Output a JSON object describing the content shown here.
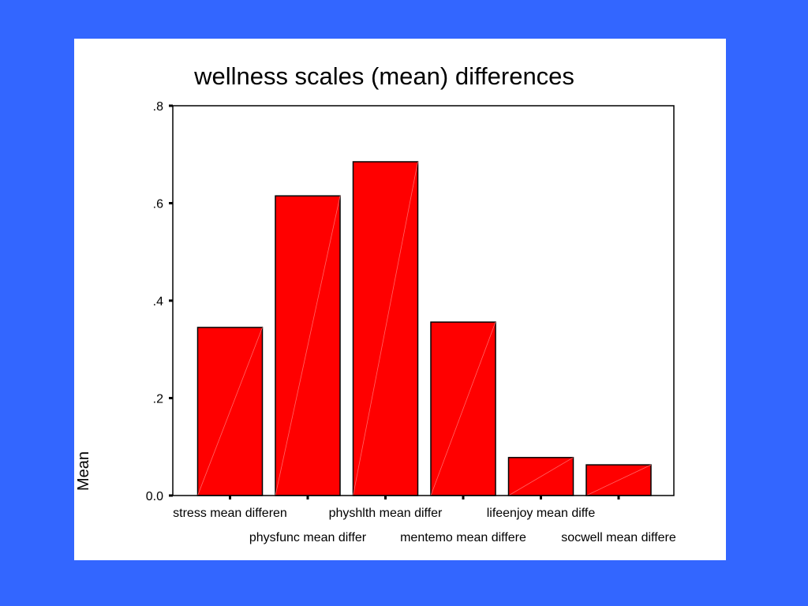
{
  "background_color": "#3366ff",
  "chart_data": {
    "type": "bar",
    "title": "wellness scales (mean) differences",
    "ylabel": "Mean",
    "xlabel": "",
    "ylim": [
      0,
      0.8
    ],
    "yticks": [
      {
        "value": 0.0,
        "label": "0.0"
      },
      {
        "value": 0.2,
        "label": ".2"
      },
      {
        "value": 0.4,
        "label": ".4"
      },
      {
        "value": 0.6,
        "label": ".6"
      },
      {
        "value": 0.8,
        "label": ".8"
      }
    ],
    "categories": [
      "stress mean differen",
      "physfunc mean differ",
      "physhlth mean differ",
      "mentemo mean differe",
      "lifeenjoy mean diffe",
      "socwell mean differe"
    ],
    "values": [
      0.345,
      0.615,
      0.685,
      0.356,
      0.078,
      0.063
    ],
    "bar_color": "#ff0000",
    "grid": false,
    "legend": "none"
  }
}
